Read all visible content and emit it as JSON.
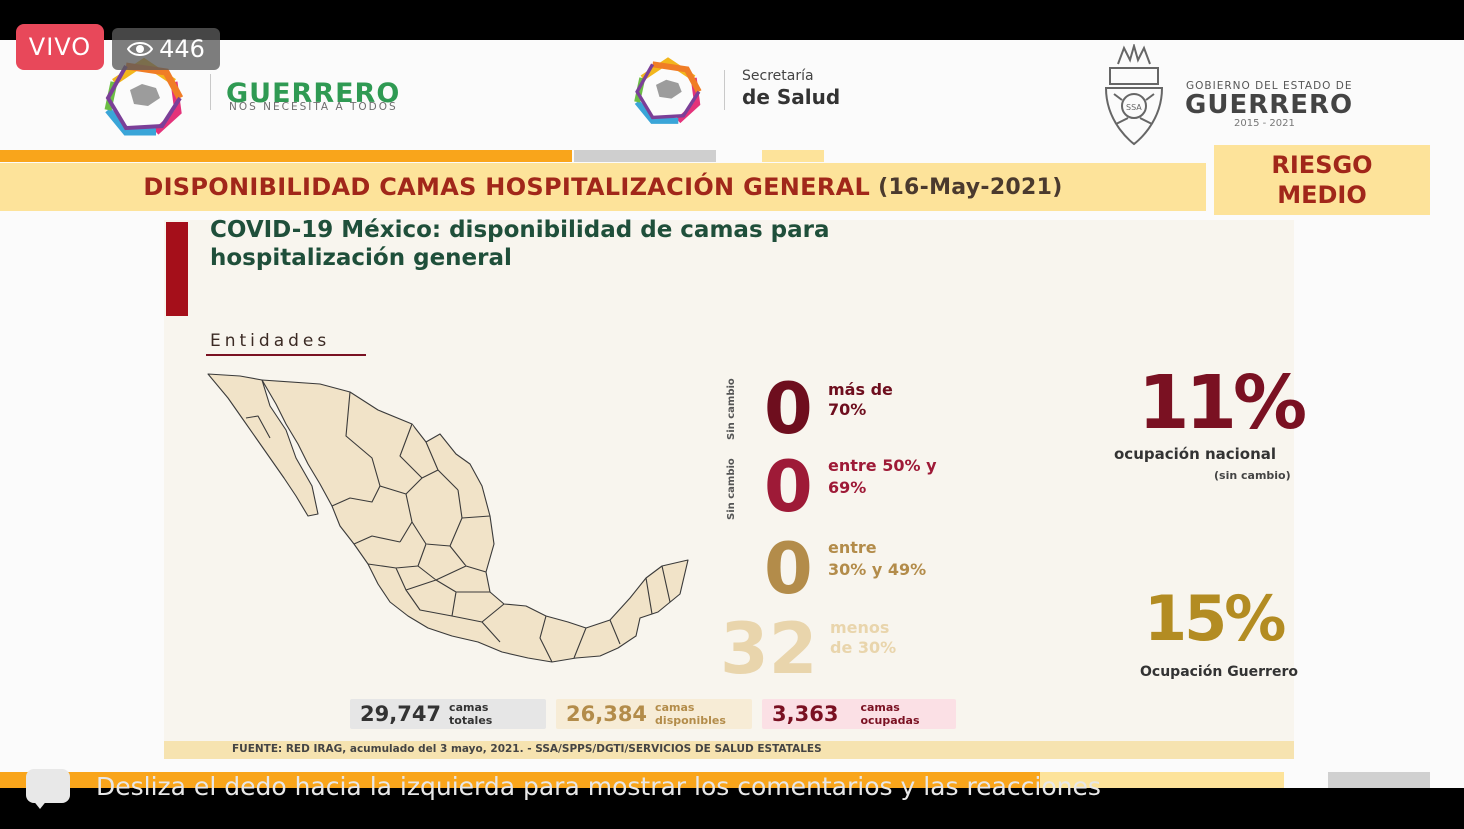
{
  "live": {
    "label": "VIVO",
    "viewers": "446",
    "eye_icon": "eye-icon"
  },
  "logos": {
    "guerrero_name": "GUERRERO",
    "guerrero_tagline": "NOS NECESITA A TODOS",
    "secretaria_line1": "Secretaría",
    "secretaria_line2": "de Salud",
    "gobierno_line1": "GOBIERNO DEL ESTADO DE",
    "gobierno_line2": "GUERRERO",
    "gobierno_years": "2015 - 2021"
  },
  "banner": {
    "title": "DISPONIBILIDAD CAMAS HOSPITALIZACIÓN GENERAL",
    "date": "(16-May-2021)"
  },
  "risk": {
    "line1": "RIESGO",
    "line2": "MEDIO"
  },
  "card": {
    "title": "COVID-19 México: disponibilidad de camas para hospitalización general",
    "entidades_label": "Entidades"
  },
  "levels": [
    {
      "count": "0",
      "desc_1": "más de",
      "desc_2": "70%",
      "note": "Sin cambio",
      "color": "#6e0e1e"
    },
    {
      "count": "0",
      "desc_1": "entre 50% y",
      "desc_2": "69%",
      "note": "Sin cambio",
      "color": "#9e1a37"
    },
    {
      "count": "0",
      "desc_1": "entre",
      "desc_2": "30% y 49%",
      "note": "",
      "color": "#b38c4a"
    },
    {
      "count": "32",
      "desc_1": "menos",
      "desc_2": "de 30%",
      "note": "",
      "color": "#e9d5ac"
    }
  ],
  "occupancy": {
    "national_pct": "11%",
    "national_label": "ocupación nacional",
    "national_note": "(sin cambio)",
    "guerrero_pct": "15%",
    "guerrero_label": "Ocupación Guerrero"
  },
  "beds": {
    "total": {
      "value": "29,747",
      "label_1": "camas",
      "label_2": "totales"
    },
    "available": {
      "value": "26,384",
      "label_1": "camas",
      "label_2": "disponibles"
    },
    "occupied": {
      "value": "3,363",
      "label_1": "camas",
      "label_2": "ocupadas"
    }
  },
  "source": "FUENTE: RED IRAG, acumulado del 3 mayo, 2021. -  SSA/SPPS/DGTI/SERVICIOS DE SALUD ESTATALES",
  "hint": "Desliza el dedo hacia la izquierda para mostrar los comentarios y las reacciones",
  "colors": {
    "accent_red": "#a1271a",
    "banner_bg": "#fde39a",
    "orange_bar": "#f9a51b",
    "green": "#2f9a53"
  }
}
